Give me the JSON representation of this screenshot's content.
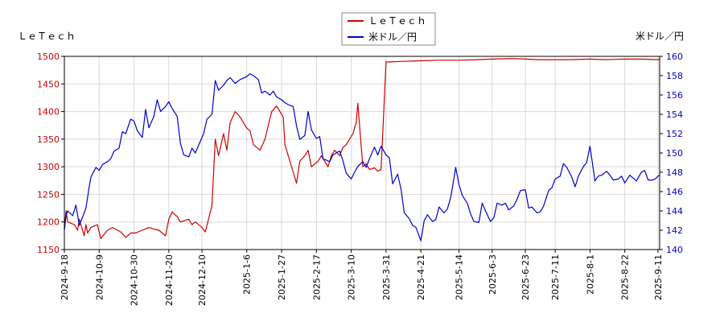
{
  "chart_data": {
    "type": "line",
    "left_axis_label": "ＬｅＴｅｃｈ",
    "right_axis_label": "米ドル／円",
    "left_ylim": [
      1150,
      1500
    ],
    "left_ticks": [
      1150,
      1200,
      1250,
      1300,
      1350,
      1400,
      1450,
      1500
    ],
    "right_ylim": [
      140,
      160
    ],
    "right_ticks": [
      140,
      142,
      144,
      146,
      148,
      150,
      152,
      154,
      156,
      158,
      160
    ],
    "x_range": [
      "2024-09-18",
      "2025-09-12"
    ],
    "x_ticks": [
      "2024-9-18",
      "2024-10-9",
      "2024-10-30",
      "2024-11-20",
      "2024-12-10",
      "2025-1-6",
      "2025-1-27",
      "2025-2-17",
      "2025-3-10",
      "2025-3-31",
      "2025-4-21",
      "2025-5-14",
      "2025-6-3",
      "2025-6-23",
      "2025-7-11",
      "2025-8-1",
      "2025-8-22",
      "2025-9-11"
    ],
    "grid": true,
    "legend_position": "top-center",
    "series": [
      {
        "name": "ＬｅＴｅｃｈ",
        "axis": "left",
        "color": "#cc0000",
        "points": [
          [
            "2024-09-18",
            1190
          ],
          [
            "2024-09-19",
            1220
          ],
          [
            "2024-09-20",
            1200
          ],
          [
            "2024-09-24",
            1195
          ],
          [
            "2024-09-26",
            1185
          ],
          [
            "2024-09-27",
            1205
          ],
          [
            "2024-09-30",
            1175
          ],
          [
            "2024-10-01",
            1195
          ],
          [
            "2024-10-02",
            1180
          ],
          [
            "2024-10-04",
            1190
          ],
          [
            "2024-10-08",
            1195
          ],
          [
            "2024-10-10",
            1170
          ],
          [
            "2024-10-14",
            1185
          ],
          [
            "2024-10-17",
            1190
          ],
          [
            "2024-10-22",
            1182
          ],
          [
            "2024-10-25",
            1172
          ],
          [
            "2024-10-28",
            1180
          ],
          [
            "2024-10-31",
            1180
          ],
          [
            "2024-11-04",
            1185
          ],
          [
            "2024-11-08",
            1190
          ],
          [
            "2024-11-11",
            1187
          ],
          [
            "2024-11-14",
            1185
          ],
          [
            "2024-11-18",
            1175
          ],
          [
            "2024-11-20",
            1205
          ],
          [
            "2024-11-22",
            1218
          ],
          [
            "2024-11-25",
            1210
          ],
          [
            "2024-11-27",
            1200
          ],
          [
            "2024-12-02",
            1205
          ],
          [
            "2024-12-04",
            1195
          ],
          [
            "2024-12-06",
            1200
          ],
          [
            "2024-12-10",
            1190
          ],
          [
            "2024-12-12",
            1182
          ],
          [
            "2024-12-16",
            1230
          ],
          [
            "2024-12-18",
            1350
          ],
          [
            "2024-12-20",
            1320
          ],
          [
            "2024-12-23",
            1360
          ],
          [
            "2024-12-25",
            1330
          ],
          [
            "2024-12-27",
            1380
          ],
          [
            "2024-12-30",
            1400
          ],
          [
            "2025-01-02",
            1390
          ],
          [
            "2025-01-06",
            1370
          ],
          [
            "2025-01-08",
            1365
          ],
          [
            "2025-01-10",
            1340
          ],
          [
            "2025-01-14",
            1330
          ],
          [
            "2025-01-17",
            1350
          ],
          [
            "2025-01-21",
            1400
          ],
          [
            "2025-01-24",
            1410
          ],
          [
            "2025-01-28",
            1390
          ],
          [
            "2025-01-29",
            1340
          ],
          [
            "2025-01-31",
            1320
          ],
          [
            "2025-02-03",
            1290
          ],
          [
            "2025-02-05",
            1270
          ],
          [
            "2025-02-07",
            1310
          ],
          [
            "2025-02-10",
            1320
          ],
          [
            "2025-02-12",
            1330
          ],
          [
            "2025-02-14",
            1300
          ],
          [
            "2025-02-18",
            1310
          ],
          [
            "2025-02-20",
            1320
          ],
          [
            "2025-02-24",
            1300
          ],
          [
            "2025-02-26",
            1320
          ],
          [
            "2025-02-28",
            1330
          ],
          [
            "2025-03-03",
            1320
          ],
          [
            "2025-03-05",
            1335
          ],
          [
            "2025-03-07",
            1340
          ],
          [
            "2025-03-11",
            1360
          ],
          [
            "2025-03-13",
            1380
          ],
          [
            "2025-03-14",
            1415
          ],
          [
            "2025-03-17",
            1300
          ],
          [
            "2025-03-19",
            1305
          ],
          [
            "2025-03-21",
            1295
          ],
          [
            "2025-03-24",
            1298
          ],
          [
            "2025-03-26",
            1292
          ],
          [
            "2025-03-28",
            1295
          ],
          [
            "2025-03-31",
            1490
          ],
          [
            "2025-04-03",
            1490
          ],
          [
            "2025-04-10",
            1491
          ],
          [
            "2025-04-21",
            1492
          ],
          [
            "2025-05-01",
            1493
          ],
          [
            "2025-05-14",
            1493
          ],
          [
            "2025-05-25",
            1494
          ],
          [
            "2025-06-03",
            1495
          ],
          [
            "2025-06-15",
            1496
          ],
          [
            "2025-06-23",
            1495
          ],
          [
            "2025-07-01",
            1494
          ],
          [
            "2025-07-11",
            1494
          ],
          [
            "2025-07-20",
            1494
          ],
          [
            "2025-08-01",
            1495
          ],
          [
            "2025-08-10",
            1494
          ],
          [
            "2025-08-22",
            1495
          ],
          [
            "2025-09-01",
            1495
          ],
          [
            "2025-09-11",
            1494
          ],
          [
            "2025-09-12",
            1494
          ]
        ]
      },
      {
        "name": "米ドル／円",
        "axis": "right",
        "color": "#0000cc",
        "points": [
          [
            "2024-09-18",
            142
          ],
          [
            "2024-09-19",
            143.5
          ],
          [
            "2024-09-20",
            144
          ],
          [
            "2024-09-23",
            143.5
          ],
          [
            "2024-09-25",
            144.6
          ],
          [
            "2024-09-27",
            142.5
          ],
          [
            "2024-09-30",
            143.8
          ],
          [
            "2024-10-01",
            144.3
          ],
          [
            "2024-10-03",
            146.5
          ],
          [
            "2024-10-04",
            147.5
          ],
          [
            "2024-10-07",
            148.5
          ],
          [
            "2024-10-09",
            148.2
          ],
          [
            "2024-10-11",
            148.8
          ],
          [
            "2024-10-14",
            149.1
          ],
          [
            "2024-10-16",
            149.4
          ],
          [
            "2024-10-18",
            150.2
          ],
          [
            "2024-10-21",
            150.5
          ],
          [
            "2024-10-23",
            152.2
          ],
          [
            "2024-10-25",
            152
          ],
          [
            "2024-10-28",
            153.5
          ],
          [
            "2024-10-30",
            153.3
          ],
          [
            "2024-11-01",
            152.3
          ],
          [
            "2024-11-04",
            151.6
          ],
          [
            "2024-11-06",
            154.5
          ],
          [
            "2024-11-08",
            152.6
          ],
          [
            "2024-11-11",
            153.8
          ],
          [
            "2024-11-13",
            155.5
          ],
          [
            "2024-11-15",
            154.3
          ],
          [
            "2024-11-18",
            154.8
          ],
          [
            "2024-11-20",
            155.3
          ],
          [
            "2024-11-22",
            154.6
          ],
          [
            "2024-11-25",
            153.8
          ],
          [
            "2024-11-27",
            151
          ],
          [
            "2024-11-29",
            149.8
          ],
          [
            "2024-12-02",
            149.6
          ],
          [
            "2024-12-04",
            150.5
          ],
          [
            "2024-12-06",
            150
          ],
          [
            "2024-12-09",
            151.2
          ],
          [
            "2024-12-11",
            152
          ],
          [
            "2024-12-13",
            153.5
          ],
          [
            "2024-12-16",
            154
          ],
          [
            "2024-12-18",
            157.5
          ],
          [
            "2024-12-20",
            156.5
          ],
          [
            "2024-12-23",
            157
          ],
          [
            "2024-12-25",
            157.5
          ],
          [
            "2024-12-27",
            157.8
          ],
          [
            "2024-12-30",
            157.2
          ],
          [
            "2025-01-02",
            157.6
          ],
          [
            "2025-01-06",
            157.9
          ],
          [
            "2025-01-08",
            158.2
          ],
          [
            "2025-01-10",
            158
          ],
          [
            "2025-01-13",
            157.6
          ],
          [
            "2025-01-15",
            156.2
          ],
          [
            "2025-01-17",
            156.4
          ],
          [
            "2025-01-20",
            156
          ],
          [
            "2025-01-22",
            156.4
          ],
          [
            "2025-01-24",
            155.8
          ],
          [
            "2025-01-27",
            155.5
          ],
          [
            "2025-01-29",
            155.2
          ],
          [
            "2025-01-31",
            155
          ],
          [
            "2025-02-03",
            154.8
          ],
          [
            "2025-02-05",
            152.8
          ],
          [
            "2025-02-07",
            151.4
          ],
          [
            "2025-02-10",
            151.8
          ],
          [
            "2025-02-12",
            154.3
          ],
          [
            "2025-02-14",
            152.4
          ],
          [
            "2025-02-17",
            151.5
          ],
          [
            "2025-02-19",
            151.7
          ],
          [
            "2025-02-21",
            149.4
          ],
          [
            "2025-02-25",
            149.1
          ],
          [
            "2025-02-27",
            149.8
          ],
          [
            "2025-03-03",
            150.2
          ],
          [
            "2025-03-05",
            149.2
          ],
          [
            "2025-03-07",
            147.9
          ],
          [
            "2025-03-10",
            147.3
          ],
          [
            "2025-03-12",
            148
          ],
          [
            "2025-03-14",
            148.6
          ],
          [
            "2025-03-17",
            149.1
          ],
          [
            "2025-03-19",
            148.5
          ],
          [
            "2025-03-21",
            149.4
          ],
          [
            "2025-03-24",
            150.6
          ],
          [
            "2025-03-26",
            149.8
          ],
          [
            "2025-03-28",
            150.7
          ],
          [
            "2025-03-31",
            149.8
          ],
          [
            "2025-04-02",
            149.5
          ],
          [
            "2025-04-04",
            146.8
          ],
          [
            "2025-04-07",
            147.8
          ],
          [
            "2025-04-09",
            146.3
          ],
          [
            "2025-04-11",
            143.8
          ],
          [
            "2025-04-14",
            143.2
          ],
          [
            "2025-04-16",
            142.5
          ],
          [
            "2025-04-18",
            142.3
          ],
          [
            "2025-04-21",
            140.9
          ],
          [
            "2025-04-23",
            143
          ],
          [
            "2025-04-25",
            143.6
          ],
          [
            "2025-04-28",
            142.9
          ],
          [
            "2025-04-30",
            143.1
          ],
          [
            "2025-05-02",
            144.4
          ],
          [
            "2025-05-05",
            143.8
          ],
          [
            "2025-05-07",
            144.2
          ],
          [
            "2025-05-09",
            145.4
          ],
          [
            "2025-05-12",
            148.5
          ],
          [
            "2025-05-14",
            146.7
          ],
          [
            "2025-05-16",
            145.6
          ],
          [
            "2025-05-19",
            144.8
          ],
          [
            "2025-05-21",
            143.7
          ],
          [
            "2025-05-23",
            142.9
          ],
          [
            "2025-05-26",
            142.8
          ],
          [
            "2025-05-28",
            144.8
          ],
          [
            "2025-05-30",
            144
          ],
          [
            "2025-06-02",
            142.9
          ],
          [
            "2025-06-04",
            143.3
          ],
          [
            "2025-06-06",
            144.8
          ],
          [
            "2025-06-09",
            144.6
          ],
          [
            "2025-06-11",
            144.8
          ],
          [
            "2025-06-13",
            144.1
          ],
          [
            "2025-06-16",
            144.5
          ],
          [
            "2025-06-18",
            145.2
          ],
          [
            "2025-06-20",
            146.1
          ],
          [
            "2025-06-23",
            146.2
          ],
          [
            "2025-06-25",
            144.3
          ],
          [
            "2025-06-27",
            144.4
          ],
          [
            "2025-06-30",
            143.8
          ],
          [
            "2025-07-02",
            143.9
          ],
          [
            "2025-07-04",
            144.5
          ],
          [
            "2025-07-07",
            146.1
          ],
          [
            "2025-07-09",
            146.4
          ],
          [
            "2025-07-11",
            147.3
          ],
          [
            "2025-07-14",
            147.6
          ],
          [
            "2025-07-16",
            148.9
          ],
          [
            "2025-07-18",
            148.5
          ],
          [
            "2025-07-21",
            147.5
          ],
          [
            "2025-07-23",
            146.5
          ],
          [
            "2025-07-25",
            147.6
          ],
          [
            "2025-07-28",
            148.6
          ],
          [
            "2025-07-30",
            149
          ],
          [
            "2025-08-01",
            150.7
          ],
          [
            "2025-08-04",
            147.1
          ],
          [
            "2025-08-06",
            147.6
          ],
          [
            "2025-08-08",
            147.7
          ],
          [
            "2025-08-11",
            148.1
          ],
          [
            "2025-08-13",
            147.7
          ],
          [
            "2025-08-15",
            147.2
          ],
          [
            "2025-08-18",
            147.3
          ],
          [
            "2025-08-20",
            147.6
          ],
          [
            "2025-08-22",
            146.9
          ],
          [
            "2025-08-25",
            147.7
          ],
          [
            "2025-08-27",
            147.4
          ],
          [
            "2025-08-29",
            147.1
          ],
          [
            "2025-09-01",
            148
          ],
          [
            "2025-09-03",
            148.2
          ],
          [
            "2025-09-05",
            147.2
          ],
          [
            "2025-09-08",
            147.2
          ],
          [
            "2025-09-10",
            147.4
          ],
          [
            "2025-09-11",
            147.6
          ],
          [
            "2025-09-12",
            147.7
          ]
        ]
      }
    ]
  }
}
